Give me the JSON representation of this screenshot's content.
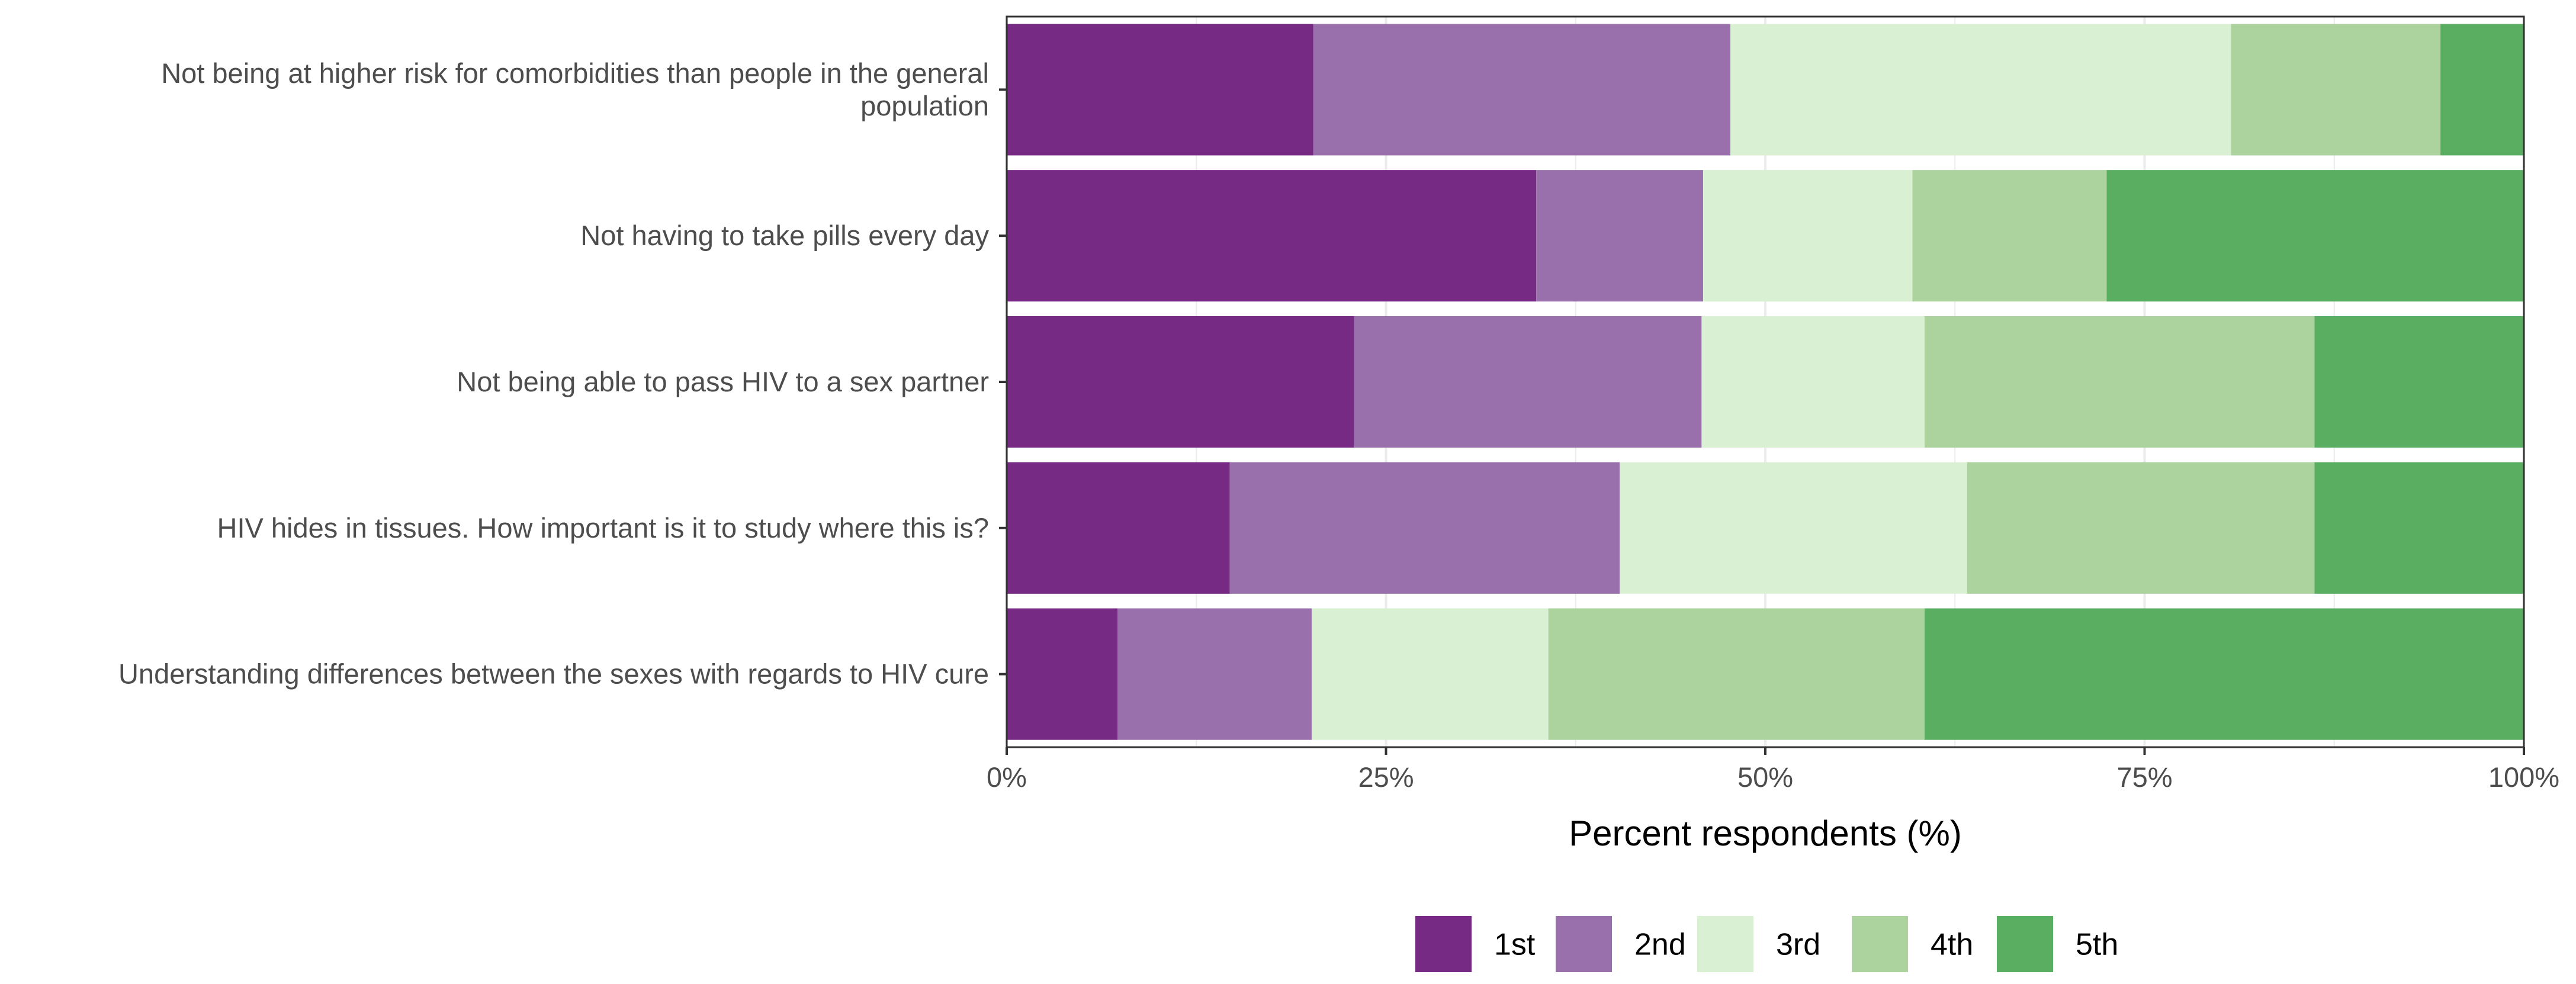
{
  "chart_data": {
    "type": "bar",
    "orientation": "horizontal",
    "stacked": true,
    "title": "",
    "xlabel": "Percent respondents (%)",
    "ylabel": "",
    "xlim": [
      0,
      100
    ],
    "x_ticks": [
      {
        "value": 0,
        "label": "0%"
      },
      {
        "value": 25,
        "label": "25%"
      },
      {
        "value": 50,
        "label": "50%"
      },
      {
        "value": 75,
        "label": "75%"
      },
      {
        "value": 100,
        "label": "100%"
      }
    ],
    "grid": true,
    "legend_position": "bottom",
    "categories": [
      [
        "Not being at higher risk for comorbidities than people in the general",
        "population"
      ],
      [
        "Not having to take pills every day"
      ],
      [
        "Not being able to pass HIV to a sex partner"
      ],
      [
        "HIV hides in tissues. How important is it to study where this is?"
      ],
      [
        "Understanding differences between the sexes with regards to HIV cure"
      ]
    ],
    "series": [
      {
        "name": "1st",
        "color": "#762a83",
        "values": [
          20.2,
          34.9,
          22.9,
          14.7,
          7.3
        ]
      },
      {
        "name": "2nd",
        "color": "#9970ab",
        "values": [
          27.5,
          11.0,
          22.9,
          25.7,
          12.8
        ]
      },
      {
        "name": "3rd",
        "color": "#d9f0d3",
        "values": [
          33.0,
          13.8,
          14.7,
          22.9,
          15.6
        ]
      },
      {
        "name": "4th",
        "color": "#acd39e",
        "values": [
          13.8,
          12.8,
          25.7,
          22.9,
          24.8
        ]
      },
      {
        "name": "5th",
        "color": "#5aae61",
        "values": [
          5.5,
          27.5,
          13.8,
          13.8,
          39.5
        ]
      }
    ]
  }
}
